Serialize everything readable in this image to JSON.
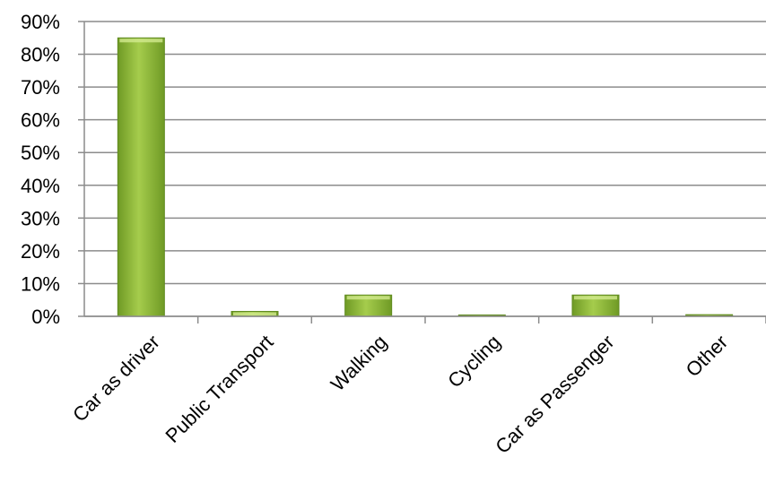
{
  "chart_data": {
    "type": "bar",
    "categories": [
      "Car as driver",
      "Public Transport",
      "Walking",
      "Cycling",
      "Car as Passenger",
      "Other"
    ],
    "values": [
      85,
      1.5,
      6.5,
      0.2,
      6.5,
      0.5
    ],
    "y_unit": "%",
    "ylim": [
      0,
      90
    ],
    "y_ticks": [
      "0%",
      "10%",
      "20%",
      "30%",
      "40%",
      "50%",
      "60%",
      "70%",
      "80%",
      "90%"
    ],
    "grid": true,
    "legend": "none",
    "colors": {
      "bar_light": "#c3de7a",
      "bar_mid": "#92bd3a",
      "bar_dark": "#5f8a1e",
      "grid": "#8c8c8c"
    }
  }
}
